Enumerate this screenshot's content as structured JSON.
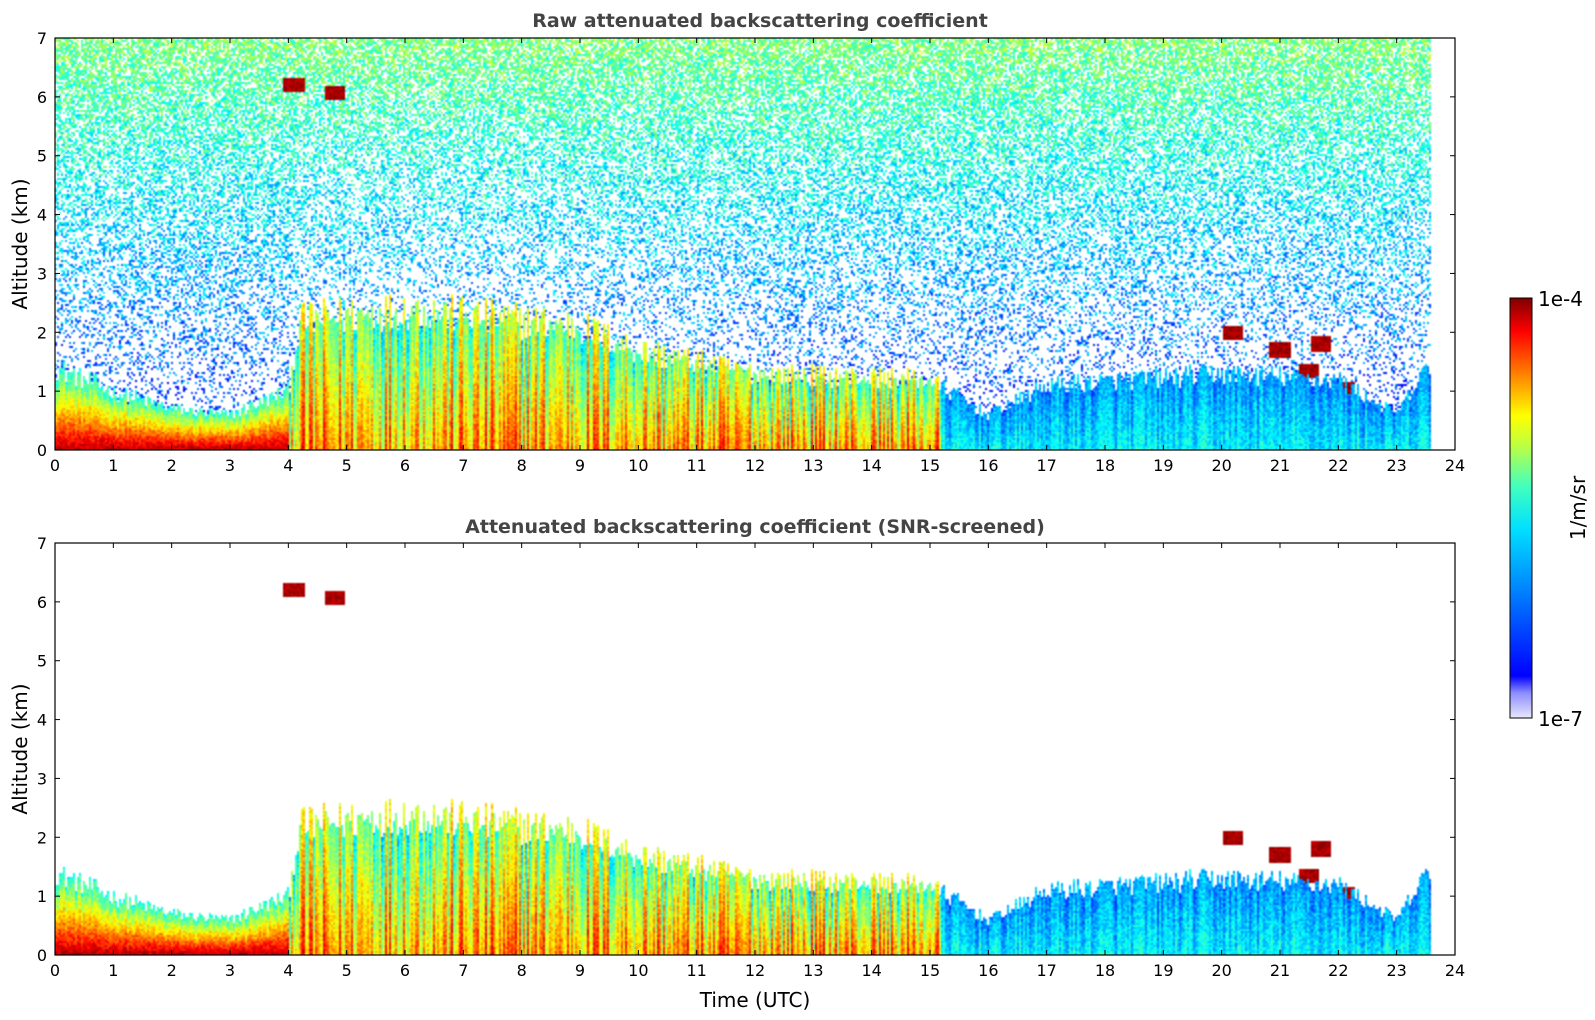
{
  "chart_data": [
    {
      "type": "heatmap",
      "title": "Raw attenuated backscattering coefficient",
      "xlabel": "",
      "ylabel": "Altitude (km)",
      "xlim": [
        0,
        24
      ],
      "ylim": [
        0,
        7
      ],
      "xticks": [
        0,
        1,
        2,
        3,
        4,
        5,
        6,
        7,
        8,
        9,
        10,
        11,
        12,
        13,
        14,
        15,
        16,
        17,
        18,
        19,
        20,
        21,
        22,
        23,
        24
      ],
      "yticks": [
        0,
        1,
        2,
        3,
        4,
        5,
        6,
        7
      ],
      "data_end_time": 23.6,
      "noise_top": true,
      "boundary_layer_top_km": [
        [
          0,
          1.4
        ],
        [
          1,
          1.0
        ],
        [
          2,
          0.7
        ],
        [
          3,
          0.6
        ],
        [
          4,
          1.0
        ],
        [
          4.2,
          2.2
        ],
        [
          6,
          2.4
        ],
        [
          9,
          2.1
        ],
        [
          10,
          1.7
        ],
        [
          12,
          1.3
        ],
        [
          15,
          1.2
        ],
        [
          16,
          0.6
        ],
        [
          17,
          1.1
        ],
        [
          20,
          1.3
        ],
        [
          22,
          1.2
        ],
        [
          23,
          0.6
        ],
        [
          23.6,
          1.5
        ]
      ],
      "clouds": [
        {
          "t": 4.1,
          "z": 6.2
        },
        {
          "t": 4.8,
          "z": 6.05
        },
        {
          "t": 20.2,
          "z": 2.0
        },
        {
          "t": 21.0,
          "z": 1.7
        },
        {
          "t": 21.5,
          "z": 1.35
        },
        {
          "t": 22.1,
          "z": 1.05
        },
        {
          "t": 21.7,
          "z": 1.8
        }
      ]
    },
    {
      "type": "heatmap",
      "title": "Attenuated backscattering coefficient (SNR-screened)",
      "xlabel": "Time (UTC)",
      "ylabel": "Altitude (km)",
      "xlim": [
        0,
        24
      ],
      "ylim": [
        0,
        7
      ],
      "xticks": [
        0,
        1,
        2,
        3,
        4,
        5,
        6,
        7,
        8,
        9,
        10,
        11,
        12,
        13,
        14,
        15,
        16,
        17,
        18,
        19,
        20,
        21,
        22,
        23,
        24
      ],
      "yticks": [
        0,
        1,
        2,
        3,
        4,
        5,
        6,
        7
      ],
      "data_end_time": 23.6,
      "noise_top": false,
      "boundary_layer_top_km": [
        [
          0,
          1.4
        ],
        [
          1,
          1.0
        ],
        [
          2,
          0.7
        ],
        [
          3,
          0.6
        ],
        [
          4,
          1.0
        ],
        [
          4.2,
          2.2
        ],
        [
          6,
          2.4
        ],
        [
          9,
          2.1
        ],
        [
          10,
          1.7
        ],
        [
          12,
          1.3
        ],
        [
          15,
          1.2
        ],
        [
          16,
          0.6
        ],
        [
          17,
          1.1
        ],
        [
          20,
          1.3
        ],
        [
          22,
          1.2
        ],
        [
          23,
          0.6
        ],
        [
          23.6,
          1.5
        ]
      ],
      "clouds": [
        {
          "t": 4.1,
          "z": 6.2
        },
        {
          "t": 4.8,
          "z": 6.05
        },
        {
          "t": 20.2,
          "z": 2.0
        },
        {
          "t": 21.0,
          "z": 1.7
        },
        {
          "t": 21.5,
          "z": 1.35
        },
        {
          "t": 22.1,
          "z": 1.05
        },
        {
          "t": 21.7,
          "z": 1.8
        }
      ]
    }
  ],
  "colorbar": {
    "max_label": "1e-4",
    "min_label": "1e-7",
    "unit_label": "1/m/sr",
    "colormap": "jet"
  }
}
